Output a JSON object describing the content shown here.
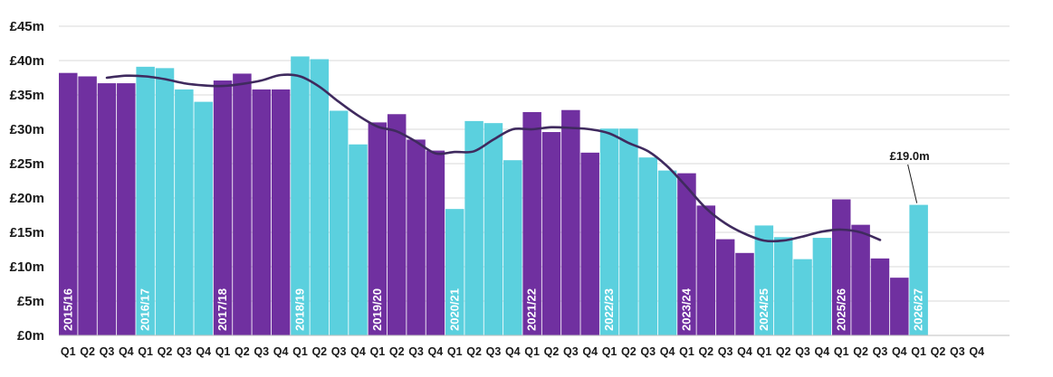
{
  "chart_data": {
    "type": "bar",
    "y_ticks": [
      "£0m",
      "£5m",
      "£10m",
      "£15m",
      "£20m",
      "£25m",
      "£30m",
      "£35m",
      "£40m",
      "£45m"
    ],
    "ylim": [
      0,
      45
    ],
    "grid": true,
    "years": [
      "2015/16",
      "2016/17",
      "2017/18",
      "2018/19",
      "2019/20",
      "2020/21",
      "2021/22",
      "2022/23",
      "2023/24",
      "2024/25",
      "2025/26",
      "2026/27"
    ],
    "quarters": [
      "Q1",
      "Q2",
      "Q3",
      "Q4"
    ],
    "values": [
      [
        38.2,
        37.7,
        36.7,
        36.7
      ],
      [
        39.1,
        38.9,
        35.8,
        34.0
      ],
      [
        37.1,
        38.1,
        35.8,
        35.8
      ],
      [
        40.6,
        40.2,
        32.7,
        27.8
      ],
      [
        31.0,
        32.2,
        28.5,
        26.9
      ],
      [
        18.4,
        31.2,
        30.9,
        25.5
      ],
      [
        32.5,
        29.6,
        32.8,
        26.6
      ],
      [
        30.1,
        30.1,
        25.9,
        24.0
      ],
      [
        23.6,
        18.9,
        14.0,
        12.0
      ],
      [
        16.0,
        14.3,
        11.1,
        14.2
      ],
      [
        19.8,
        16.1,
        11.2,
        8.4
      ],
      [
        19.0,
        null,
        null,
        null
      ]
    ],
    "trend": [
      37.5,
      37.8,
      37.7,
      37.3,
      36.7,
      36.4,
      36.3,
      36.6,
      37.1,
      37.9,
      37.7,
      36.2,
      34.0,
      32.0,
      30.4,
      29.7,
      28.2,
      26.5,
      26.7,
      26.8,
      28.5,
      30.0,
      30.0,
      30.3,
      30.2,
      30.0,
      29.4,
      28.0,
      26.8,
      24.6,
      21.6,
      18.5,
      16.3,
      14.8,
      13.8,
      13.8,
      14.4,
      15.1,
      15.4,
      15.0,
      13.9
    ],
    "annotation": {
      "text": "£19.0m",
      "value": 19.0
    },
    "colors": {
      "dark": "#7030a0",
      "light": "#5bd0de",
      "trend": "#3f2a5e"
    }
  }
}
